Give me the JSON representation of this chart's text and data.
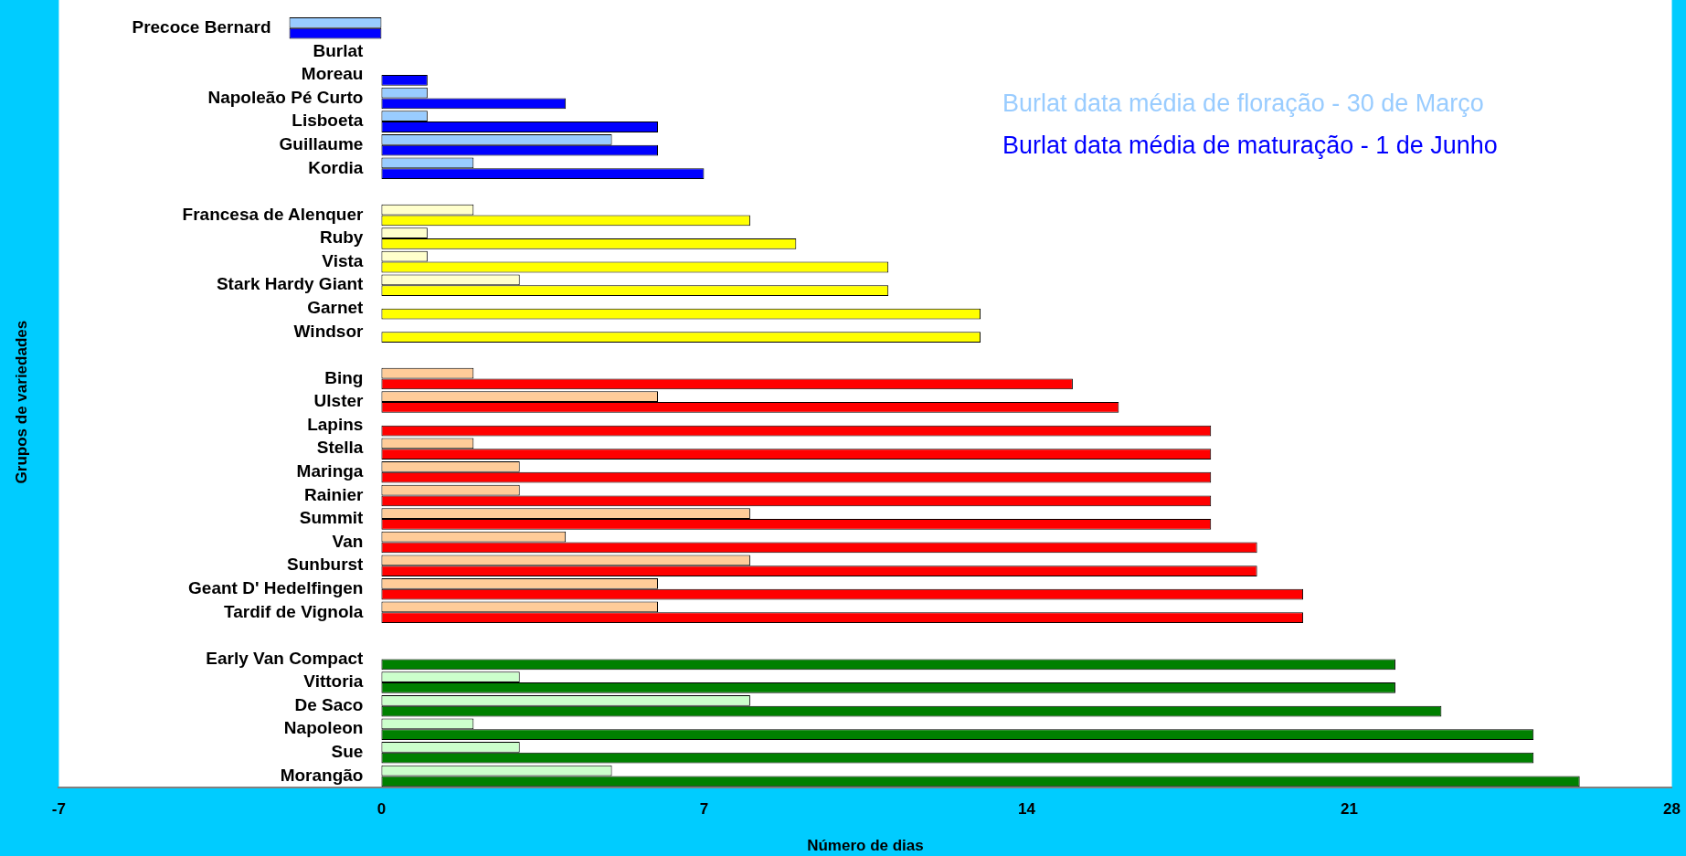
{
  "chart_data": {
    "type": "bar",
    "orientation": "horizontal",
    "xlabel": "Número de dias",
    "ylabel": "Grupos de variedades",
    "categories": [
      "Precoce Bernard",
      "Burlat",
      "Moreau",
      "Napoleão Pé Curto",
      "Lisboeta",
      "Guillaume",
      "Kordia",
      null,
      "Francesa de Alenquer",
      "Ruby",
      "Vista",
      "Stark Hardy Giant",
      "Garnet",
      "Windsor",
      null,
      "Bing",
      "Ulster",
      "Lapins",
      "Stella",
      "Maringa",
      "Rainier",
      "Summit",
      "Van",
      "Sunburst",
      "Geant D' Hedelfingen",
      "Tardif de Vignola",
      null,
      "Early Van Compact",
      "Vittoria",
      "De Saco",
      "Napoleon",
      "Sue",
      "Morangão"
    ],
    "series": [
      {
        "values": [
          -2,
          0,
          0,
          1,
          1,
          5,
          2,
          null,
          2,
          1,
          1,
          3,
          0,
          0,
          null,
          2,
          6,
          0,
          2,
          3,
          3,
          8,
          4,
          8,
          6,
          6,
          null,
          0,
          3,
          8,
          2,
          3,
          5
        ],
        "colors": [
          "#99ccff",
          "#99ccff",
          "#99ccff",
          "#99ccff",
          "#99ccff",
          "#99ccff",
          "#99ccff",
          null,
          "#ffffcc",
          "#ffffcc",
          "#ffffcc",
          "#ffffcc",
          "#ffffcc",
          "#ffffcc",
          null,
          "#ffcc99",
          "#ffcc99",
          "#ffcc99",
          "#ffcc99",
          "#ffcc99",
          "#ffcc99",
          "#ffcc99",
          "#ffcc99",
          "#ffcc99",
          "#ffcc99",
          "#ffcc99",
          null,
          "#ccffcc",
          "#ccffcc",
          "#ccffcc",
          "#ccffcc",
          "#ccffcc",
          "#ccffcc"
        ]
      },
      {
        "values": [
          -2,
          0,
          1,
          4,
          6,
          6,
          7,
          null,
          8,
          9,
          11,
          11,
          13,
          13,
          null,
          15,
          16,
          18,
          18,
          18,
          18,
          18,
          19,
          19,
          20,
          20,
          null,
          22,
          22,
          23,
          25,
          25,
          26
        ],
        "colors": [
          "#0000ff",
          "#0000ff",
          "#0000ff",
          "#0000ff",
          "#0000ff",
          "#0000ff",
          "#0000ff",
          null,
          "#ffff00",
          "#ffff00",
          "#ffff00",
          "#ffff00",
          "#ffff00",
          "#ffff00",
          null,
          "#ff0000",
          "#ff0000",
          "#ff0000",
          "#ff0000",
          "#ff0000",
          "#ff0000",
          "#ff0000",
          "#ff0000",
          "#ff0000",
          "#ff0000",
          "#ff0000",
          null,
          "#008000",
          "#008000",
          "#008000",
          "#008000",
          "#008000",
          "#008000"
        ]
      }
    ],
    "xlim": [
      -7,
      28
    ],
    "xticks": [
      -7,
      0,
      7,
      14,
      21,
      28
    ],
    "annotations": [
      "Burlat data média de floração - 30 de Março",
      "Burlat data média de maturação - 1 de Junho"
    ]
  }
}
